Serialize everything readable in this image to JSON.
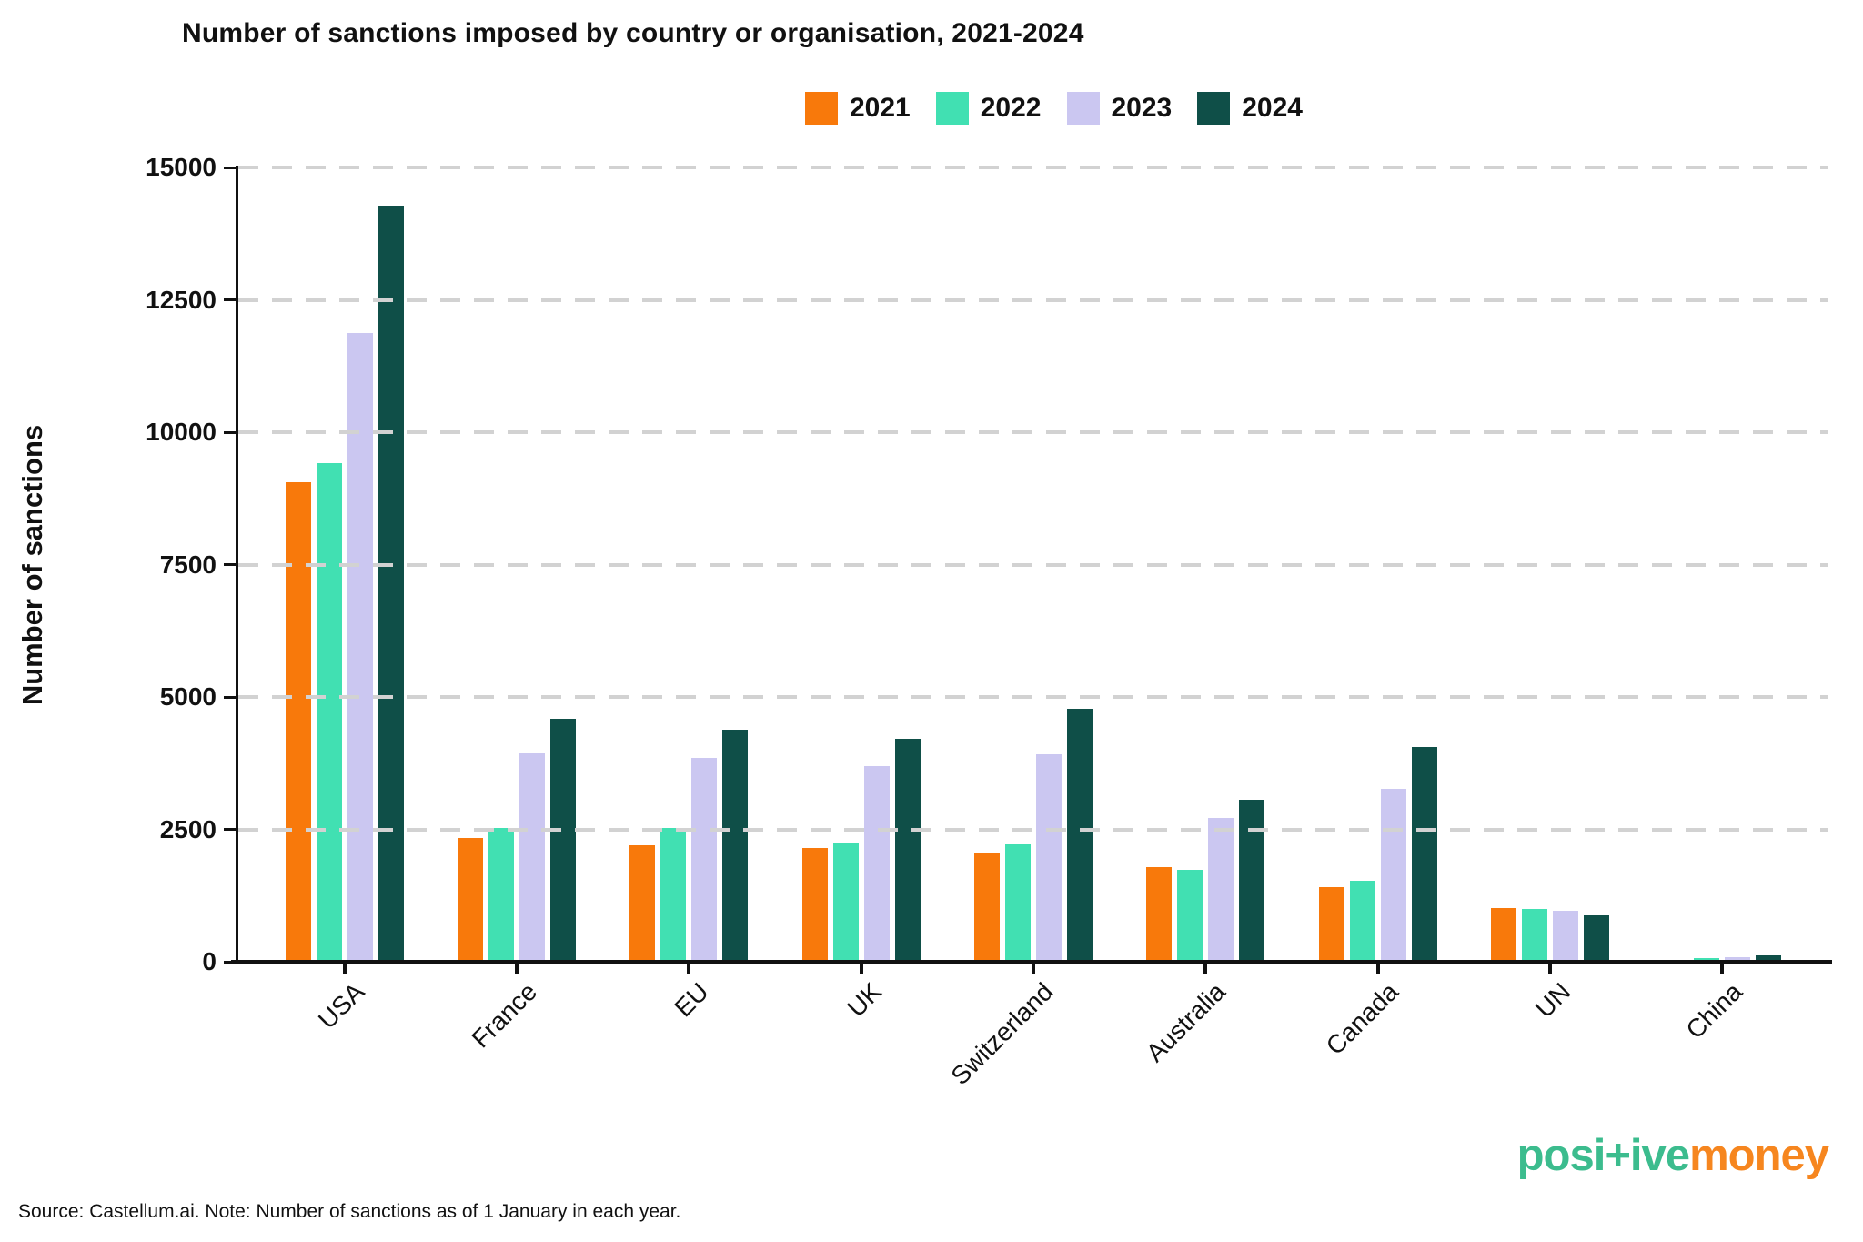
{
  "title": "Number of sanctions imposed by country or organisation, 2021-2024",
  "chart_data": {
    "type": "bar",
    "title": "Number of sanctions imposed by country or organisation, 2021-2024",
    "xlabel": "",
    "ylabel": "Number of sanctions",
    "ylim": [
      0,
      15000
    ],
    "y_ticks": [
      0,
      2500,
      5000,
      7500,
      10000,
      12500,
      15000
    ],
    "grid": "horizontal-dashed",
    "gridline_color": "#d2d2d2",
    "legend_position": "top",
    "categories": [
      "USA",
      "France",
      "EU",
      "UK",
      "Switzerland",
      "Australia",
      "Canada",
      "UN",
      "China"
    ],
    "series": [
      {
        "name": "2021",
        "color": "#F8790B",
        "values": [
          9050,
          2340,
          2200,
          2150,
          2050,
          1780,
          1410,
          1020,
          0
        ]
      },
      {
        "name": "2022",
        "color": "#41E0B2",
        "values": [
          9420,
          2530,
          2520,
          2230,
          2220,
          1730,
          1530,
          1000,
          70
        ]
      },
      {
        "name": "2023",
        "color": "#CBC7F1",
        "values": [
          11880,
          3930,
          3850,
          3690,
          3920,
          2720,
          3270,
          970,
          90
        ]
      },
      {
        "name": "2024",
        "color": "#0F4F48",
        "values": [
          14280,
          4580,
          4380,
          4210,
          4780,
          3050,
          4060,
          880,
          120
        ]
      }
    ]
  },
  "footer": {
    "source_note": "Source: Castellum.ai. Note: Number of sanctions as of 1 January in each year."
  },
  "logo": {
    "part1": "posi+ive",
    "part2": "money",
    "part1_color": "#3CBC8E",
    "part2_color": "#F6861F"
  }
}
